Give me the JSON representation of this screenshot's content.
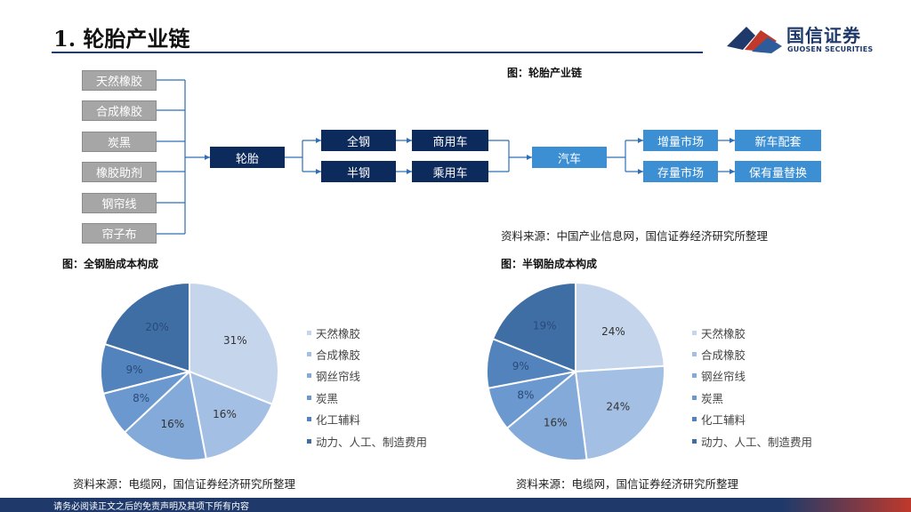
{
  "page": {
    "title": "1. 轮胎产业链",
    "logo": {
      "name_cn": "国信证券",
      "name_en": "GUOSEN SECURITIES"
    },
    "footer": "请务必阅读正文之后的免责声明及其项下所有内容"
  },
  "diagram": {
    "caption": "图：轮胎产业链",
    "source": "资料来源：中国产业信息网，国信证券经济研究所整理",
    "raw_materials": [
      "天然橡胶",
      "合成橡胶",
      "炭黑",
      "橡胶助剂",
      "钢帘线",
      "帘子布"
    ],
    "tire": "轮胎",
    "tire_types": [
      "全钢",
      "半钢"
    ],
    "vehicle_types": [
      "商用车",
      "乘用车"
    ],
    "auto": "汽车",
    "markets": [
      "增量市场",
      "存量市场"
    ],
    "outcomes": [
      "新车配套",
      "保有量替换"
    ]
  },
  "colors": {
    "navy": "#0d2a5c",
    "light_blue": "#3d8fd3",
    "gray": "#a6a6a6",
    "pie": [
      "#c5d6ec",
      "#a3c0e4",
      "#84aad9",
      "#6a98cf",
      "#5283bd",
      "#3f6ea5"
    ]
  },
  "chart_data": [
    {
      "type": "pie",
      "title": "图：全钢胎成本构成",
      "categories": [
        "天然橡胶",
        "合成橡胶",
        "钢丝帘线",
        "炭黑",
        "化工辅料",
        "动力、人工、制造费用"
      ],
      "values": [
        31,
        16,
        16,
        8,
        9,
        20
      ],
      "labels": [
        "31%",
        "16%",
        "16%",
        "8%",
        "9%",
        "20%"
      ],
      "legend": "right",
      "source": "资料来源：电缆网，国信证券经济研究所整理"
    },
    {
      "type": "pie",
      "title": "图：半钢胎成本构成",
      "categories": [
        "天然橡胶",
        "合成橡胶",
        "钢丝帘线",
        "炭黑",
        "化工辅料",
        "动力、人工、制造费用"
      ],
      "values": [
        24,
        24,
        16,
        8,
        9,
        19
      ],
      "labels": [
        "24%",
        "24%",
        "16%",
        "8%",
        "9%",
        "19%"
      ],
      "legend": "right",
      "source": "资料来源：电缆网，国信证券经济研究所整理"
    }
  ]
}
